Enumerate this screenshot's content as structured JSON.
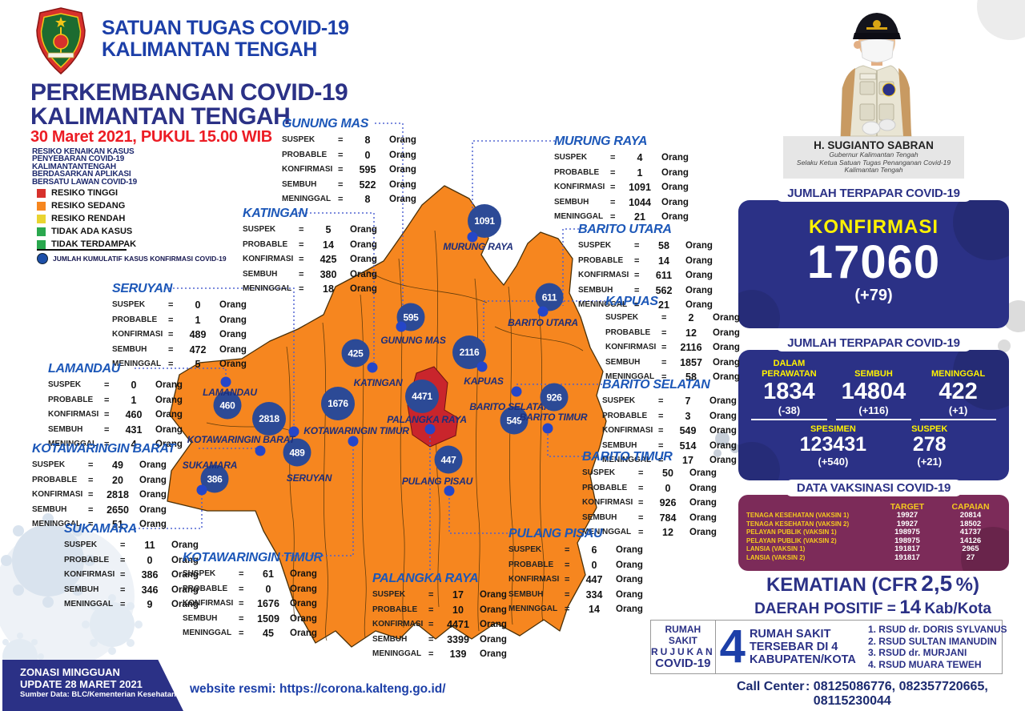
{
  "org": {
    "line1": "SATUAN TUGAS COVID-19",
    "line2": "KALIMANTAN TENGAH"
  },
  "title": {
    "line1": "PERKEMBANGAN COVID-19",
    "line2": "KALIMANTAN TENGAH",
    "datetime": "30 Maret 2021, PUKUL 15.00 WIB"
  },
  "legend": {
    "description_lines": [
      "RESIKO KENAIKAN KASUS",
      "PENYEBARAN COVID-19",
      "KALIMANTANTENGAH",
      "BERDASARKAN APLIKASI",
      "BERSATU LAWAN COVID-19"
    ],
    "items": [
      {
        "label": "RESIKO TINGGI",
        "color": "#d7312c"
      },
      {
        "label": "RESIKO SEDANG",
        "color": "#f6861f"
      },
      {
        "label": "RESIKO RENDAH",
        "color": "#e9d430"
      },
      {
        "label": "TIDAK ADA KASUS",
        "color": "#2aa84e"
      },
      {
        "label": "TIDAK TERDAMPAK",
        "color": "#2aa84e"
      }
    ],
    "marker_note": "JUMLAH KUMULATIF KASUS KONFIRMASI COVID-19"
  },
  "region_rows": {
    "labels": [
      "SUSPEK",
      "PROBABLE",
      "KONFIRMASI",
      "SEMBUH",
      "MENINGGAL"
    ],
    "unit": "Orang"
  },
  "regions": [
    {
      "id": "gunung_mas",
      "name": "GUNUNG MAS",
      "suspek": "8",
      "probable": "0",
      "konfirmasi": "595",
      "sembuh": "522",
      "meninggal": "8"
    },
    {
      "id": "murung_raya",
      "name": "MURUNG RAYA",
      "suspek": "4",
      "probable": "1",
      "konfirmasi": "1091",
      "sembuh": "1044",
      "meninggal": "21"
    },
    {
      "id": "katingan",
      "name": "KATINGAN",
      "suspek": "5",
      "probable": "14",
      "konfirmasi": "425",
      "sembuh": "380",
      "meninggal": "18"
    },
    {
      "id": "barito_utara",
      "name": "BARITO UTARA",
      "suspek": "58",
      "probable": "14",
      "konfirmasi": "611",
      "sembuh": "562",
      "meninggal": "21"
    },
    {
      "id": "seruyan",
      "name": "SERUYAN",
      "suspek": "0",
      "probable": "1",
      "konfirmasi": "489",
      "sembuh": "472",
      "meninggal": "5"
    },
    {
      "id": "kapuas",
      "name": "KAPUAS",
      "suspek": "2",
      "probable": "12",
      "konfirmasi": "2116",
      "sembuh": "1857",
      "meninggal": "58"
    },
    {
      "id": "lamandau",
      "name": "LAMANDAU",
      "suspek": "0",
      "probable": "1",
      "konfirmasi": "460",
      "sembuh": "431",
      "meninggal": "4"
    },
    {
      "id": "barito_selatan",
      "name": "BARITO SELATAN",
      "suspek": "7",
      "probable": "3",
      "konfirmasi": "549",
      "sembuh": "514",
      "meninggal": "17"
    },
    {
      "id": "kotawaringin_barat",
      "name": "KOTAWARINGIN BARAT",
      "suspek": "49",
      "probable": "20",
      "konfirmasi": "2818",
      "sembuh": "2650",
      "meninggal": "51"
    },
    {
      "id": "barito_timur",
      "name": "BARITO TIMUR",
      "suspek": "50",
      "probable": "0",
      "konfirmasi": "926",
      "sembuh": "784",
      "meninggal": "12"
    },
    {
      "id": "sukamara",
      "name": "SUKAMARA",
      "suspek": "11",
      "probable": "0",
      "konfirmasi": "386",
      "sembuh": "346",
      "meninggal": "9"
    },
    {
      "id": "pulang_pisau",
      "name": "PULANG PISAU",
      "suspek": "6",
      "probable": "0",
      "konfirmasi": "447",
      "sembuh": "334",
      "meninggal": "14"
    },
    {
      "id": "kotawaringin_timur",
      "name": "KOTAWARINGIN TIMUR",
      "suspek": "61",
      "probable": "0",
      "konfirmasi": "1676",
      "sembuh": "1509",
      "meninggal": "45"
    },
    {
      "id": "palangka_raya",
      "name": "PALANGKA RAYA",
      "suspek": "17",
      "probable": "10",
      "konfirmasi": "4471",
      "sembuh": "3399",
      "meninggal": "139"
    }
  ],
  "governor": {
    "name": "H. SUGIANTO SABRAN",
    "role_line1": "Gubernur Kalimantan Tengah",
    "role_line2": "Selaku Ketua Satuan Tugas Penanganan Covid-19",
    "role_line3": "Kalimantan Tengah"
  },
  "terpapar_total": {
    "header": "JUMLAH TERPAPAR COVID-19",
    "label": "KONFIRMASI",
    "value": "17060",
    "delta": "(+79)"
  },
  "terpapar_detail": {
    "header": "JUMLAH TERPAPAR COVID-19",
    "stats_top": [
      {
        "label": "DALAM PERAWATAN",
        "value": "1834",
        "delta": "(-38)"
      },
      {
        "label": "SEMBUH",
        "value": "14804",
        "delta": "(+116)"
      },
      {
        "label": "MENINGGAL",
        "value": "422",
        "delta": "(+1)"
      }
    ],
    "stats_bottom": [
      {
        "label": "SPESIMEN",
        "value": "123431",
        "delta": "(+540)"
      },
      {
        "label": "SUSPEK",
        "value": "278",
        "delta": "(+21)"
      }
    ]
  },
  "vaccination": {
    "header": "DATA VAKSINASI COVID-19",
    "col_target": "TARGET",
    "col_capaian": "CAPAIAN",
    "rows": [
      {
        "label": "TENAGA KESEHATAN (VAKSIN 1)",
        "target": "19927",
        "capaian": "20814"
      },
      {
        "label": "TENAGA KESEHATAN (VAKSIN 2)",
        "target": "19927",
        "capaian": "18502"
      },
      {
        "label": "PELAYAN PUBLIK (VAKSIN 1)",
        "target": "198975",
        "capaian": "41737"
      },
      {
        "label": "PELAYAN PUBLIK (VAKSIN 2)",
        "target": "198975",
        "capaian": "14126"
      },
      {
        "label": "LANSIA (VAKSIN 1)",
        "target": "191817",
        "capaian": "2965"
      },
      {
        "label": "LANSIA (VAKSIN 2)",
        "target": "191817",
        "capaian": "27"
      }
    ]
  },
  "kematian": {
    "prefix": "KEMATIAN (CFR",
    "cfr": "2,5",
    "suffix": "%)",
    "daerah_prefix": "DAERAH POSITIF =",
    "daerah_value": "14",
    "daerah_suffix": "Kab/Kota"
  },
  "hospitals": {
    "ref_line1": "RUMAH SAKIT",
    "ref_line2": "RUJUKAN",
    "ref_line3": "COVID-19",
    "count": "4",
    "desc_line1": "RUMAH SAKIT",
    "desc_line2": "TERSEBAR DI 4",
    "desc_line3": "KABUPATEN/KOTA",
    "list": [
      "1. RSUD dr. DORIS SYLVANUS",
      "2. RSUD SULTAN IMANUDIN",
      "3. RSUD dr. MURJANI",
      "4. RSUD MUARA TEWEH"
    ]
  },
  "call_center": {
    "label": "Call Center",
    "separator": ":",
    "numbers": "08125086776, 082357720665, 08115230044"
  },
  "footer": {
    "zonasi_line1": "ZONASI MINGGUAN",
    "zonasi_line2": "UPDATE 28 MARET 2021",
    "zonasi_line3": "Sumber Data: BLC/Kementerian Kesehatan",
    "website": "website resmi: https://corona.kalteng.go.id/"
  }
}
